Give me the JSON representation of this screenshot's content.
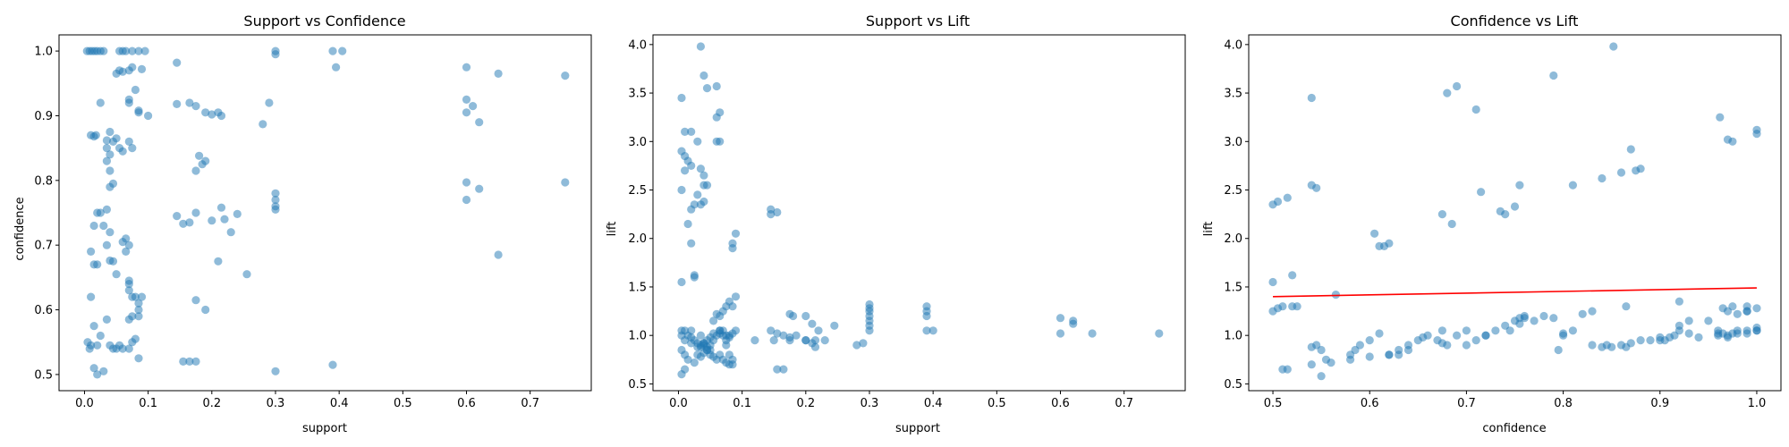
{
  "chart_data": [
    {
      "type": "scatter",
      "title": "Support vs Confidence",
      "xlabel": "support",
      "ylabel": "confidence",
      "xlim": [
        -0.04,
        0.796
      ],
      "ylim": [
        0.475,
        1.025
      ],
      "xticks": [
        0.0,
        0.1,
        0.2,
        0.3,
        0.4,
        0.5,
        0.6,
        0.7
      ],
      "xtick_labels": [
        "0.0",
        "0.1",
        "0.2",
        "0.3",
        "0.4",
        "0.5",
        "0.6",
        "0.7"
      ],
      "yticks": [
        0.5,
        0.6,
        0.7,
        0.8,
        0.9,
        1.0
      ],
      "ytick_labels": [
        "0.5",
        "0.6",
        "0.7",
        "0.8",
        "0.9",
        "1.0"
      ],
      "marker_color": "#1f77b4",
      "marker_alpha": 0.5,
      "grid": false,
      "series": [
        {
          "x": [
            0.004,
            0.008,
            0.012,
            0.016,
            0.02,
            0.025,
            0.03,
            0.055,
            0.06,
            0.065,
            0.075,
            0.085,
            0.095,
            0.145,
            0.3,
            0.3,
            0.39,
            0.395,
            0.405,
            0.05,
            0.055,
            0.06,
            0.075,
            0.08,
            0.07,
            0.09,
            0.07,
            0.07,
            0.085,
            0.085,
            0.6,
            0.65,
            0.755,
            0.145,
            0.165,
            0.175,
            0.19,
            0.2,
            0.21,
            0.215,
            0.28,
            0.29,
            0.6,
            0.61,
            0.62,
            0.6,
            0.025,
            0.035,
            0.04,
            0.035,
            0.045,
            0.04,
            0.035,
            0.04,
            0.05,
            0.055,
            0.06,
            0.07,
            0.045,
            0.04,
            0.075,
            0.1,
            0.01,
            0.015,
            0.018,
            0.025,
            0.18,
            0.185,
            0.19,
            0.175,
            0.3,
            0.3,
            0.3,
            0.3,
            0.6,
            0.62,
            0.755,
            0.02,
            0.03,
            0.01,
            0.015,
            0.02,
            0.035,
            0.015,
            0.04,
            0.145,
            0.155,
            0.165,
            0.175,
            0.2,
            0.215,
            0.22,
            0.23,
            0.21,
            0.24,
            0.255,
            0.065,
            0.07,
            0.065,
            0.06,
            0.045,
            0.07,
            0.07,
            0.04,
            0.035,
            0.05,
            0.07,
            0.075,
            0.08,
            0.085,
            0.09,
            0.085,
            0.085,
            0.075,
            0.07,
            0.6,
            0.65,
            0.19,
            0.175,
            0.008,
            0.02,
            0.025,
            0.01,
            0.015,
            0.035,
            0.04,
            0.045,
            0.05,
            0.055,
            0.06,
            0.07,
            0.075,
            0.08,
            0.085,
            0.155,
            0.165,
            0.175,
            0.3,
            0.39,
            0.005,
            0.01,
            0.015,
            0.02,
            0.03
          ],
          "y": [
            1.0,
            1.0,
            1.0,
            1.0,
            1.0,
            1.0,
            1.0,
            1.0,
            1.0,
            1.0,
            1.0,
            1.0,
            1.0,
            0.982,
            1.0,
            0.995,
            1.0,
            0.975,
            1.0,
            0.965,
            0.97,
            0.968,
            0.975,
            0.94,
            0.97,
            0.972,
            0.92,
            0.925,
            0.905,
            0.908,
            0.975,
            0.965,
            0.962,
            0.918,
            0.92,
            0.915,
            0.905,
            0.902,
            0.905,
            0.9,
            0.887,
            0.92,
            0.925,
            0.915,
            0.89,
            0.905,
            0.92,
            0.862,
            0.875,
            0.85,
            0.86,
            0.84,
            0.83,
            0.815,
            0.865,
            0.85,
            0.845,
            0.86,
            0.795,
            0.79,
            0.85,
            0.9,
            0.87,
            0.868,
            0.87,
            0.75,
            0.838,
            0.825,
            0.83,
            0.815,
            0.78,
            0.77,
            0.76,
            0.755,
            0.797,
            0.787,
            0.797,
            0.75,
            0.73,
            0.69,
            0.67,
            0.67,
            0.755,
            0.73,
            0.72,
            0.745,
            0.733,
            0.735,
            0.75,
            0.738,
            0.758,
            0.74,
            0.72,
            0.675,
            0.748,
            0.655,
            0.71,
            0.7,
            0.69,
            0.705,
            0.675,
            0.645,
            0.64,
            0.676,
            0.7,
            0.655,
            0.63,
            0.62,
            0.62,
            0.61,
            0.62,
            0.6,
            0.59,
            0.59,
            0.585,
            0.77,
            0.685,
            0.6,
            0.615,
            0.54,
            0.545,
            0.56,
            0.62,
            0.575,
            0.585,
            0.545,
            0.54,
            0.54,
            0.545,
            0.54,
            0.54,
            0.55,
            0.555,
            0.525,
            0.52,
            0.52,
            0.52,
            0.505,
            0.515,
            0.55,
            0.545,
            0.51,
            0.5,
            0.505
          ]
        }
      ]
    },
    {
      "type": "scatter",
      "title": "Support vs Lift",
      "xlabel": "support",
      "ylabel": "lift",
      "xlim": [
        -0.04,
        0.796
      ],
      "ylim": [
        0.43,
        4.1
      ],
      "xticks": [
        0.0,
        0.1,
        0.2,
        0.3,
        0.4,
        0.5,
        0.6,
        0.7
      ],
      "xtick_labels": [
        "0.0",
        "0.1",
        "0.2",
        "0.3",
        "0.4",
        "0.5",
        "0.6",
        "0.7"
      ],
      "yticks": [
        0.5,
        1.0,
        1.5,
        2.0,
        2.5,
        3.0,
        3.5,
        4.0
      ],
      "ytick_labels": [
        "0.5",
        "1.0",
        "1.5",
        "2.0",
        "2.5",
        "3.0",
        "3.5",
        "4.0"
      ],
      "marker_color": "#1f77b4",
      "marker_alpha": 0.5,
      "grid": false,
      "series": [
        {
          "x": [
            0.035,
            0.04,
            0.045,
            0.06,
            0.065,
            0.005,
            0.01,
            0.02,
            0.03,
            0.06,
            0.06,
            0.065,
            0.005,
            0.01,
            0.015,
            0.02,
            0.035,
            0.04,
            0.04,
            0.045,
            0.03,
            0.035,
            0.04,
            0.025,
            0.02,
            0.01,
            0.005,
            0.015,
            0.02,
            0.025,
            0.145,
            0.145,
            0.155,
            0.09,
            0.085,
            0.085,
            0.005,
            0.025,
            0.005,
            0.01,
            0.015,
            0.02,
            0.025,
            0.03,
            0.035,
            0.04,
            0.045,
            0.05,
            0.055,
            0.06,
            0.065,
            0.07,
            0.075,
            0.08,
            0.085,
            0.09,
            0.065,
            0.07,
            0.075,
            0.08,
            0.085,
            0.09,
            0.055,
            0.06,
            0.065,
            0.07,
            0.075,
            0.08,
            0.085,
            0.145,
            0.175,
            0.18,
            0.2,
            0.21,
            0.22,
            0.245,
            0.12,
            0.15,
            0.175,
            0.2,
            0.215,
            0.155,
            0.165,
            0.175,
            0.185,
            0.2,
            0.21,
            0.215,
            0.23,
            0.28,
            0.29,
            0.3,
            0.3,
            0.3,
            0.3,
            0.3,
            0.3,
            0.3,
            0.39,
            0.39,
            0.39,
            0.39,
            0.4,
            0.6,
            0.6,
            0.62,
            0.62,
            0.65,
            0.755,
            0.005,
            0.01,
            0.015,
            0.025,
            0.03,
            0.035,
            0.04,
            0.045,
            0.05,
            0.055,
            0.06,
            0.065,
            0.07,
            0.075,
            0.08,
            0.085,
            0.02,
            0.035,
            0.04,
            0.045,
            0.05,
            0.055,
            0.065,
            0.075,
            0.08,
            0.005,
            0.01,
            0.02,
            0.03,
            0.035,
            0.04,
            0.045,
            0.05,
            0.155,
            0.165,
            0.01,
            0.005
          ],
          "y": [
            3.98,
            3.68,
            3.55,
            3.57,
            3.3,
            3.45,
            3.1,
            3.1,
            3.0,
            3.25,
            3.0,
            3.0,
            2.9,
            2.85,
            2.8,
            2.75,
            2.72,
            2.65,
            2.55,
            2.55,
            2.45,
            2.35,
            2.38,
            2.35,
            2.3,
            2.7,
            2.5,
            2.15,
            1.95,
            1.6,
            2.3,
            2.25,
            2.27,
            2.05,
            1.95,
            1.9,
            1.55,
            1.62,
            1.05,
            1.05,
            1.0,
            0.98,
            0.95,
            0.92,
            0.88,
            0.9,
            0.85,
            0.9,
            0.95,
            1.0,
            1.02,
            1.05,
            0.95,
            1.0,
            1.02,
            1.05,
            1.2,
            1.25,
            1.3,
            1.35,
            1.3,
            1.4,
            1.15,
            1.22,
            1.05,
            1.0,
            0.9,
            0.8,
            0.75,
            1.05,
            1.22,
            1.2,
            1.2,
            1.12,
            1.05,
            1.1,
            0.95,
            0.95,
            0.98,
            0.95,
            0.95,
            1.02,
            1.0,
            0.95,
            1.0,
            0.95,
            0.92,
            0.88,
            0.95,
            0.9,
            0.92,
            1.32,
            1.28,
            1.25,
            1.2,
            1.15,
            1.1,
            1.05,
            1.3,
            1.25,
            1.2,
            1.05,
            1.05,
            1.18,
            1.02,
            1.15,
            1.12,
            1.02,
            1.02,
            0.85,
            0.8,
            0.75,
            0.72,
            0.8,
            0.78,
            0.82,
            0.85,
            0.8,
            0.78,
            0.75,
            0.8,
            0.75,
            0.72,
            0.7,
            0.7,
            1.05,
            1.0,
            0.92,
            0.95,
            0.98,
            1.02,
            1.05,
            1.0,
            0.98,
            1.0,
            0.95,
            0.92,
            0.88,
            0.9,
            0.92,
            0.88,
            0.85,
            0.65,
            0.65,
            0.65,
            0.6
          ]
        }
      ]
    },
    {
      "type": "scatter",
      "title": "Confidence vs Lift",
      "xlabel": "confidence",
      "ylabel": "lift",
      "xlim": [
        0.475,
        1.025
      ],
      "ylim": [
        0.43,
        4.1
      ],
      "xticks": [
        0.5,
        0.6,
        0.7,
        0.8,
        0.9,
        1.0
      ],
      "xtick_labels": [
        "0.5",
        "0.6",
        "0.7",
        "0.8",
        "0.9",
        "1.0"
      ],
      "yticks": [
        0.5,
        1.0,
        1.5,
        2.0,
        2.5,
        3.0,
        3.5,
        4.0
      ],
      "ytick_labels": [
        "0.5",
        "1.0",
        "1.5",
        "2.0",
        "2.5",
        "3.0",
        "3.5",
        "4.0"
      ],
      "marker_color": "#1f77b4",
      "marker_alpha": 0.5,
      "grid": false,
      "trendline": {
        "x": [
          0.5,
          1.0
        ],
        "y": [
          1.4,
          1.49
        ],
        "color": "#ff0000"
      },
      "series": [
        {
          "x": [
            0.852,
            0.79,
            0.69,
            0.68,
            0.71,
            0.54,
            0.505,
            0.5,
            0.515,
            0.52,
            0.54,
            0.545,
            0.685,
            0.675,
            0.715,
            0.74,
            0.735,
            0.75,
            0.755,
            0.81,
            0.84,
            0.86,
            0.87,
            0.875,
            0.88,
            0.962,
            0.97,
            0.975,
            1.0,
            1.0,
            0.605,
            0.61,
            0.615,
            0.62,
            0.5,
            0.52,
            0.565,
            0.5,
            0.505,
            0.51,
            0.525,
            0.54,
            0.545,
            0.55,
            0.555,
            0.56,
            0.54,
            0.58,
            0.585,
            0.59,
            0.6,
            0.61,
            0.62,
            0.63,
            0.64,
            0.65,
            0.66,
            0.67,
            0.675,
            0.68,
            0.69,
            0.7,
            0.71,
            0.72,
            0.73,
            0.74,
            0.75,
            0.755,
            0.76,
            0.77,
            0.78,
            0.79,
            0.8,
            0.81,
            0.82,
            0.83,
            0.84,
            0.845,
            0.85,
            0.86,
            0.865,
            0.87,
            0.88,
            0.89,
            0.9,
            0.905,
            0.91,
            0.915,
            0.92,
            0.93,
            0.94,
            0.95,
            0.96,
            0.965,
            0.97,
            0.975,
            0.98,
            0.99,
            1.0,
            1.0,
            0.965,
            0.97,
            0.975,
            0.98,
            0.99,
            1.0,
            0.58,
            0.6,
            0.62,
            0.63,
            0.64,
            0.655,
            0.675,
            0.7,
            0.72,
            0.745,
            0.755,
            0.76,
            0.795,
            0.8,
            0.83,
            0.865,
            0.9,
            0.92,
            0.96,
            0.99,
            0.99,
            0.92,
            0.93,
            0.96,
            0.97,
            0.98,
            0.99,
            1.0,
            0.55,
            0.51,
            0.515
          ],
          "y": [
            3.98,
            3.68,
            3.57,
            3.5,
            3.33,
            3.45,
            2.38,
            2.35,
            2.42,
            1.62,
            2.55,
            2.52,
            2.15,
            2.25,
            2.48,
            2.25,
            2.28,
            2.33,
            2.55,
            2.55,
            2.62,
            2.68,
            2.92,
            2.7,
            2.72,
            3.25,
            3.02,
            3.0,
            3.12,
            3.08,
            2.05,
            1.92,
            1.92,
            1.95,
            1.55,
            1.3,
            1.42,
            1.25,
            1.28,
            1.3,
            1.3,
            0.88,
            0.9,
            0.85,
            0.75,
            0.72,
            0.7,
            0.75,
            0.85,
            0.9,
            0.95,
            1.02,
            0.8,
            0.8,
            0.85,
            0.95,
            1.0,
            0.95,
            1.05,
            0.9,
            1.0,
            1.05,
            0.95,
            1.0,
            1.05,
            1.1,
            1.15,
            1.12,
            1.18,
            1.15,
            1.2,
            1.18,
            1.0,
            1.05,
            1.22,
            1.25,
            0.88,
            0.9,
            0.88,
            0.9,
            1.3,
            0.92,
            0.95,
            0.95,
            0.98,
            0.95,
            0.98,
            1.0,
            1.05,
            1.02,
            0.98,
            1.15,
            1.05,
            1.02,
            1.0,
            1.02,
            1.05,
            1.02,
            1.05,
            1.08,
            1.28,
            1.25,
            1.3,
            1.22,
            1.25,
            1.28,
            0.8,
            0.78,
            0.8,
            0.85,
            0.9,
            0.98,
            0.92,
            0.9,
            1.0,
            1.05,
            1.18,
            1.2,
            0.85,
            1.02,
            0.9,
            0.88,
            0.95,
            1.35,
            1.02,
            1.25,
            1.3,
            1.1,
            1.15,
            1.0,
            0.98,
            1.02,
            1.05,
            1.05,
            0.58,
            0.65,
            0.65
          ]
        }
      ]
    }
  ]
}
